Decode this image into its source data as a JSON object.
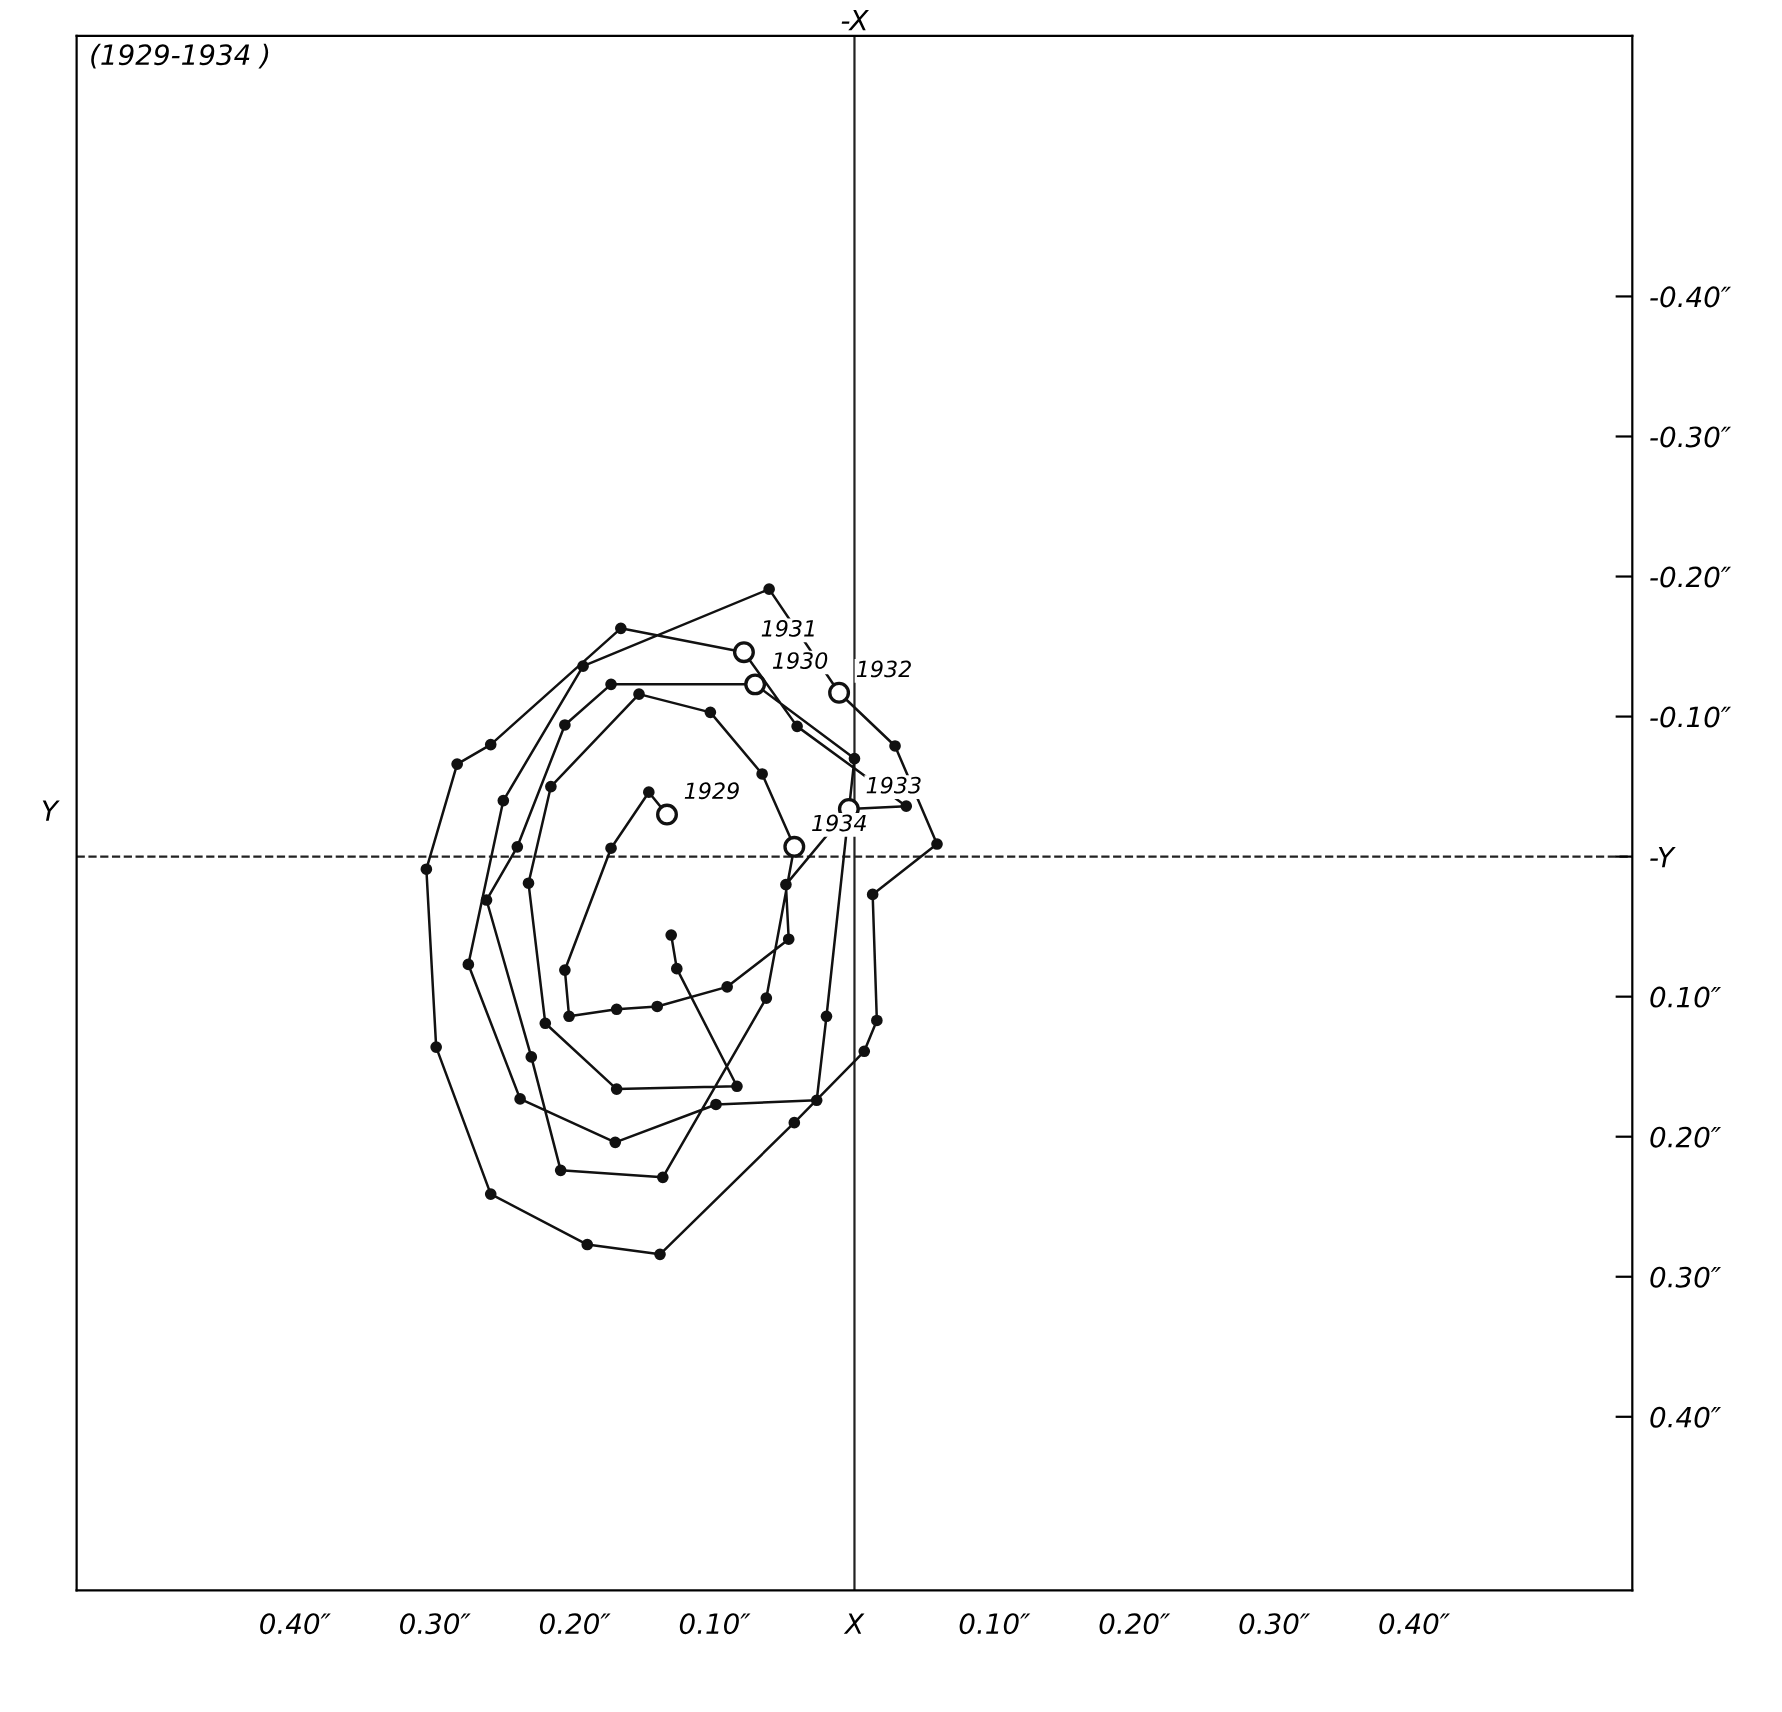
{
  "chart_data": {
    "type": "line",
    "title": "(1929-1934 )",
    "series": [
      {
        "color": "#111111",
        "marker": "circle",
        "line_style": "solid",
        "x": [
          0.134,
          0.147,
          0.174,
          0.207,
          0.204,
          0.17,
          0.141,
          0.091,
          0.047,
          0.049,
          0.004,
          -0.037,
          0.041,
          0.079,
          0.167,
          0.26,
          0.284,
          0.306,
          0.299,
          0.26,
          0.191,
          0.139,
          0.043,
          -0.007,
          -0.016,
          -0.013,
          -0.059,
          -0.029,
          0.011,
          0.061,
          0.194,
          0.251,
          0.276,
          0.239,
          0.171,
          0.099,
          0.027,
          0.02,
          0.0,
          0.071,
          0.174,
          0.207,
          0.241,
          0.263,
          0.231,
          0.21,
          0.137,
          0.063,
          0.043,
          0.066,
          0.103,
          0.154,
          0.217,
          0.233,
          0.221,
          0.17,
          0.084,
          0.127,
          0.131
        ],
        "values": [
          -0.03,
          -0.046,
          -0.006,
          0.081,
          0.114,
          0.109,
          0.107,
          0.093,
          0.059,
          0.02,
          -0.034,
          -0.036,
          -0.093,
          -0.146,
          -0.163,
          -0.08,
          -0.066,
          0.009,
          0.136,
          0.241,
          0.277,
          0.284,
          0.19,
          0.139,
          0.117,
          0.027,
          -0.009,
          -0.079,
          -0.117,
          -0.191,
          -0.136,
          -0.04,
          0.077,
          0.173,
          0.204,
          0.177,
          0.174,
          0.114,
          -0.07,
          -0.123,
          -0.123,
          -0.094,
          -0.007,
          0.031,
          0.143,
          0.224,
          0.229,
          0.101,
          -0.007,
          -0.059,
          -0.103,
          -0.116,
          -0.05,
          0.019,
          0.119,
          0.166,
          0.164,
          0.08,
          0.056
        ]
      },
      {
        "type": "scatter",
        "color": "#111111",
        "marker": "circle",
        "x": [
          0.134,
          0.079,
          0.071,
          0.011,
          0.004,
          0.043
        ],
        "values": [
          -0.03,
          -0.146,
          -0.123,
          -0.117,
          -0.034,
          -0.007
        ]
      }
    ],
    "annotations": [
      "-X",
      "Y",
      {
        "text": "1929",
        "x": 0.134,
        "y": -0.03
      },
      {
        "text": "1931",
        "x": 0.079,
        "y": -0.146
      },
      {
        "text": "1930",
        "x": 0.071,
        "y": -0.123
      },
      {
        "text": "1932",
        "x": 0.011,
        "y": -0.117
      },
      {
        "text": "1933",
        "x": 0.004,
        "y": -0.034
      },
      {
        "text": "1934",
        "x": 0.043,
        "y": -0.007
      }
    ],
    "xlim": [
      0.556,
      -0.556
    ],
    "xticks": [
      {
        "value": 0.4,
        "label": "0.40″"
      },
      {
        "value": 0.3,
        "label": "0.30″"
      },
      {
        "value": 0.2,
        "label": "0.20″"
      },
      {
        "value": 0.1,
        "label": "0.10″"
      },
      {
        "value": 0,
        "label": "X"
      },
      {
        "value": -0.1,
        "label": "0.10″"
      },
      {
        "value": -0.2,
        "label": "0.20″"
      },
      {
        "value": -0.3,
        "label": "0.30″"
      },
      {
        "value": -0.4,
        "label": "0.40″"
      }
    ],
    "ylim": [
      0.524,
      -0.586
    ],
    "yticks": [
      {
        "value": -0.4,
        "label": "-0.40″"
      },
      {
        "value": -0.3,
        "label": "-0.30″"
      },
      {
        "value": -0.2,
        "label": "-0.20″"
      },
      {
        "value": -0.1,
        "label": "-0.10″"
      },
      {
        "value": 0,
        "label": "-Y"
      },
      {
        "value": 0.1,
        "label": "0.10″"
      },
      {
        "value": 0.2,
        "label": "0.20″"
      },
      {
        "value": 0.3,
        "label": "0.30″"
      },
      {
        "value": 0.4,
        "label": "0.40″"
      }
    ],
    "ref_lines": [
      {
        "axis": "x",
        "value": 0,
        "line_style": "solid",
        "color": "#222222"
      },
      {
        "axis": "y",
        "value": 0,
        "line_style": "dashed",
        "color": "#222222"
      }
    ],
    "grid": false,
    "legend": false
  }
}
